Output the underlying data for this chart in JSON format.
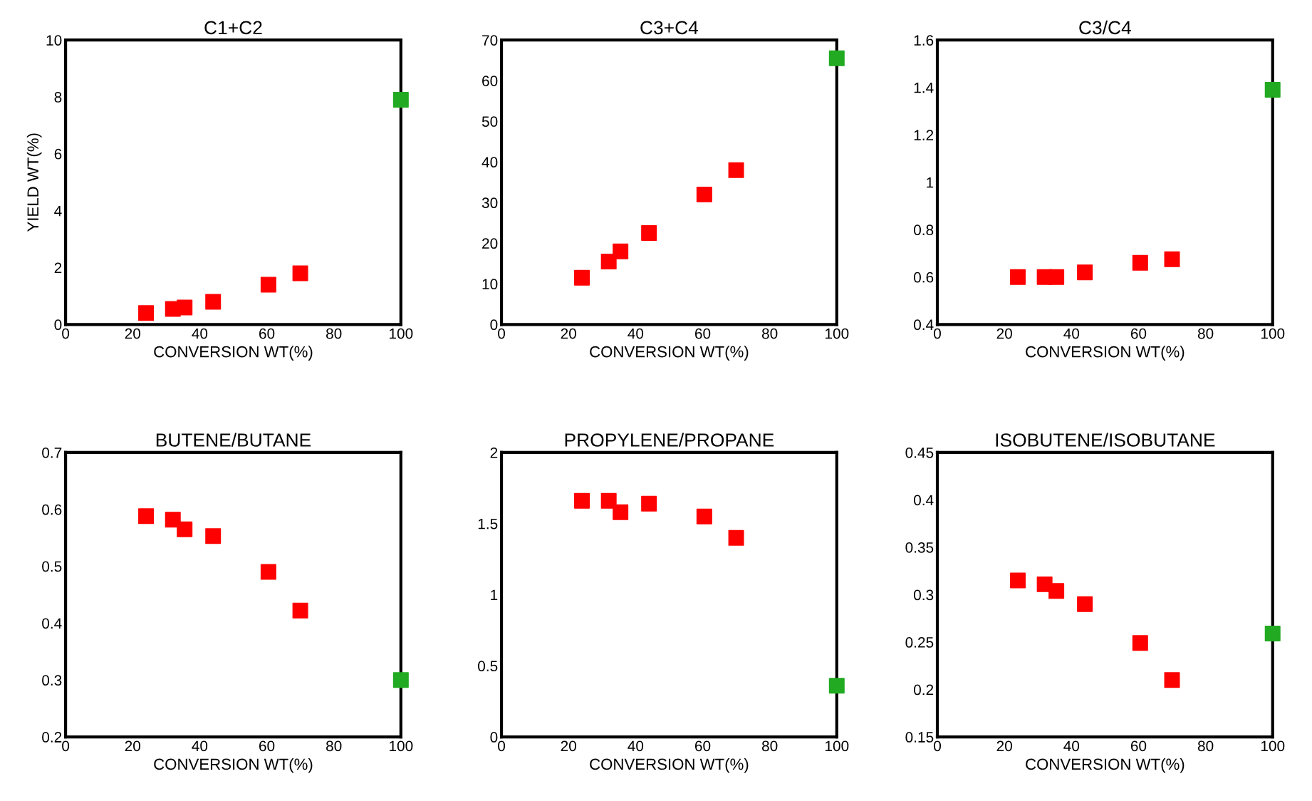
{
  "chart_data": [
    {
      "type": "scatter",
      "title": "C1+C2",
      "xlabel": "CONVERSION WT(%)",
      "ylabel": "YIELD WT(%)",
      "xlim": [
        0,
        100
      ],
      "xticks": [
        0,
        20,
        40,
        60,
        80,
        100
      ],
      "ylim": [
        0,
        10
      ],
      "yticks": [
        0,
        2,
        4,
        6,
        8,
        10
      ],
      "marker": "square",
      "grid": false,
      "series": [
        {
          "color": "#ff0000",
          "x": [
            24,
            32,
            35.5,
            44,
            60.5,
            70
          ],
          "values": [
            0.4,
            0.55,
            0.6,
            0.8,
            1.4,
            1.8
          ]
        },
        {
          "color": "#22aa22",
          "x": [
            100
          ],
          "values": [
            7.9
          ]
        }
      ]
    },
    {
      "type": "scatter",
      "title": "C3+C4",
      "xlabel": "CONVERSION WT(%)",
      "xlim": [
        0,
        100
      ],
      "xticks": [
        0,
        20,
        40,
        60,
        80,
        100
      ],
      "ylim": [
        0,
        70
      ],
      "yticks": [
        0,
        10,
        20,
        30,
        40,
        50,
        60,
        70
      ],
      "marker": "square",
      "grid": false,
      "series": [
        {
          "color": "#ff0000",
          "x": [
            24,
            32,
            35.5,
            44,
            60.5,
            70
          ],
          "values": [
            11.5,
            15.5,
            18,
            22.5,
            32,
            38
          ]
        },
        {
          "color": "#22aa22",
          "x": [
            100
          ],
          "values": [
            65.5
          ]
        }
      ]
    },
    {
      "type": "scatter",
      "title": "C3/C4",
      "xlabel": "CONVERSION WT(%)",
      "xlim": [
        0,
        100
      ],
      "xticks": [
        0,
        20,
        40,
        60,
        80,
        100
      ],
      "ylim": [
        0.4,
        1.6
      ],
      "yticks": [
        0.4,
        0.6,
        0.8,
        1,
        1.2,
        1.4,
        1.6
      ],
      "marker": "square",
      "grid": false,
      "series": [
        {
          "color": "#ff0000",
          "x": [
            24,
            32,
            35.5,
            44,
            60.5,
            70
          ],
          "values": [
            0.6,
            0.6,
            0.6,
            0.62,
            0.66,
            0.675
          ]
        },
        {
          "color": "#22aa22",
          "x": [
            100
          ],
          "values": [
            1.39
          ]
        }
      ]
    },
    {
      "type": "scatter",
      "title": "BUTENE/BUTANE",
      "xlabel": "CONVERSION WT(%)",
      "xlim": [
        0,
        100
      ],
      "xticks": [
        0,
        20,
        40,
        60,
        80,
        100
      ],
      "ylim": [
        0.2,
        0.7
      ],
      "yticks": [
        0.2,
        0.3,
        0.4,
        0.5,
        0.6,
        0.7
      ],
      "marker": "square",
      "grid": false,
      "series": [
        {
          "color": "#ff0000",
          "x": [
            24,
            32,
            35.5,
            44,
            60.5,
            70
          ],
          "values": [
            0.588,
            0.582,
            0.565,
            0.553,
            0.49,
            0.422
          ]
        },
        {
          "color": "#22aa22",
          "x": [
            100
          ],
          "values": [
            0.3
          ]
        }
      ]
    },
    {
      "type": "scatter",
      "title": "PROPYLENE/PROPANE",
      "xlabel": "CONVERSION WT(%)",
      "xlim": [
        0,
        100
      ],
      "xticks": [
        0,
        20,
        40,
        60,
        80,
        100
      ],
      "ylim": [
        0,
        2
      ],
      "yticks": [
        0,
        0.5,
        1,
        1.5,
        2
      ],
      "marker": "square",
      "grid": false,
      "series": [
        {
          "color": "#ff0000",
          "x": [
            24,
            32,
            35.5,
            44,
            60.5,
            70
          ],
          "values": [
            1.66,
            1.66,
            1.58,
            1.64,
            1.55,
            1.4
          ]
        },
        {
          "color": "#22aa22",
          "x": [
            100
          ],
          "values": [
            0.36
          ]
        }
      ]
    },
    {
      "type": "scatter",
      "title": "ISOBUTENE/ISOBUTANE",
      "xlabel": "CONVERSION WT(%)",
      "xlim": [
        0,
        100
      ],
      "xticks": [
        0,
        20,
        40,
        60,
        80,
        100
      ],
      "ylim": [
        0.15,
        0.45
      ],
      "yticks": [
        0.15,
        0.2,
        0.25,
        0.3,
        0.35,
        0.4,
        0.45
      ],
      "marker": "square",
      "grid": false,
      "series": [
        {
          "color": "#ff0000",
          "x": [
            24,
            32,
            35.5,
            44,
            60.5,
            70
          ],
          "values": [
            0.315,
            0.311,
            0.304,
            0.29,
            0.249,
            0.21
          ]
        },
        {
          "color": "#22aa22",
          "x": [
            100
          ],
          "values": [
            0.259
          ]
        }
      ]
    }
  ]
}
